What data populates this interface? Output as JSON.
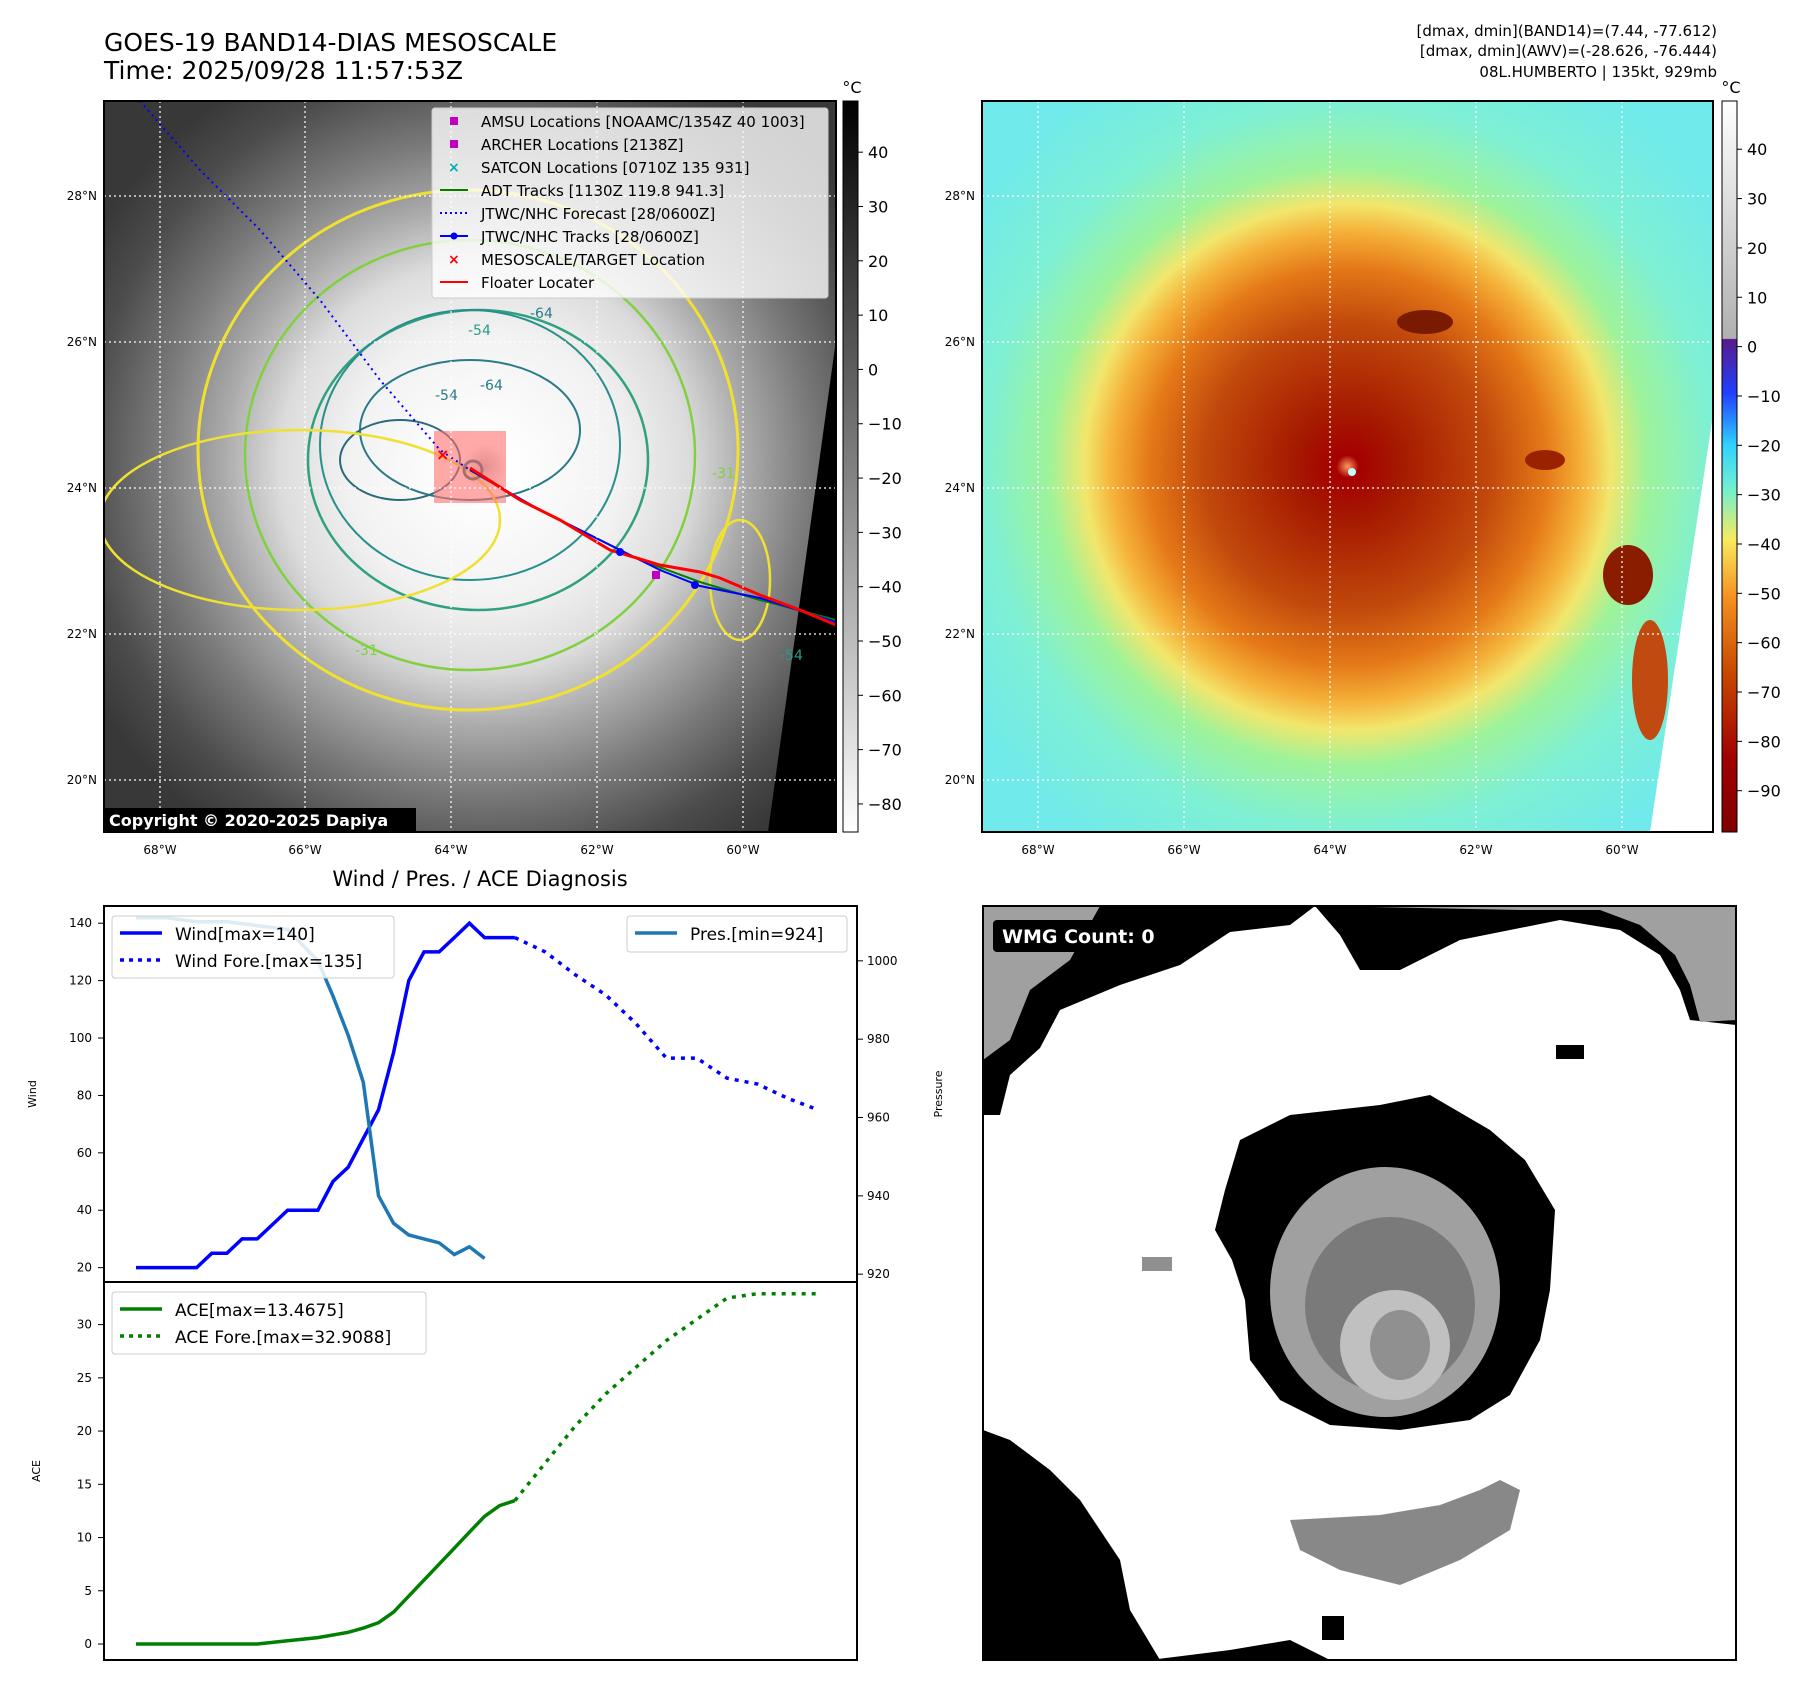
{
  "header": {
    "title_line1": "GOES-19 BAND14-DIAS MESOSCALE",
    "title_line2": "Time: 2025/09/28 11:57:53Z",
    "info_line1": "[dmax, dmin](BAND14)=(7.44, -77.612)",
    "info_line2": "[dmax, dmin](AWV)=(-28.626, -76.444)",
    "info_line3": "08L.HUMBERTO | 135kt, 929mb"
  },
  "map_panels": {
    "lat_labels": [
      "28°N",
      "26°N",
      "24°N",
      "22°N",
      "20°N"
    ],
    "lon_labels": [
      "68°W",
      "66°W",
      "64°W",
      "62°W",
      "60°W"
    ],
    "colorbar_unit": "°C",
    "gray_colorbar_ticks": [
      "40",
      "30",
      "20",
      "10",
      "0",
      "−10",
      "−20",
      "−30",
      "−40",
      "−50",
      "−60",
      "−70",
      "−80"
    ],
    "color_colorbar_ticks": [
      "40",
      "30",
      "20",
      "10",
      "0",
      "−10",
      "−20",
      "−30",
      "−40",
      "−50",
      "−60",
      "−70",
      "−80",
      "−90"
    ],
    "copyright": "Copyright © 2020-2025 Dapiya",
    "contour_labels": [
      "-64",
      "-54",
      "-64",
      "-54",
      "-31",
      "-31",
      "-54"
    ],
    "legend": [
      {
        "label": "AMSU Locations [NOAAMC/1354Z 40 1003]",
        "color": "#c000c0"
      },
      {
        "label": "ARCHER Locations [2138Z]",
        "color": "#c000c0"
      },
      {
        "label": "SATCON Locations [0710Z 135 931]",
        "color": "#00b0b0"
      },
      {
        "label": "ADT Tracks [1130Z 119.8 941.3]",
        "color": "#008000"
      },
      {
        "label": "JTWC/NHC Forecast [28/0600Z]",
        "color": "#0000ff"
      },
      {
        "label": "JTWC/NHC Tracks [28/0600Z]",
        "color": "#0000ff"
      },
      {
        "label": "MESOSCALE/TARGET Location",
        "color": "#ff0000"
      },
      {
        "label": "Floater Locater",
        "color": "#ff0000"
      }
    ]
  },
  "chart_data": [
    {
      "type": "line",
      "title": "Wind / Pres. / ACE Diagnosis",
      "ylabel": "Wind",
      "ylim": [
        15,
        146
      ],
      "yticks": [
        20,
        40,
        60,
        80,
        100,
        120,
        140
      ],
      "x_range": [
        0,
        45
      ],
      "series": [
        {
          "name": "Wind[max=140]",
          "style": "solid",
          "color": "#0000ff",
          "x": [
            0,
            1,
            2,
            3,
            4,
            5,
            6,
            7,
            8,
            9,
            10,
            11,
            12,
            13,
            14,
            15,
            16,
            17,
            18,
            19,
            20,
            21,
            22,
            23,
            24,
            25
          ],
          "values": [
            20,
            20,
            20,
            20,
            20,
            25,
            25,
            30,
            30,
            35,
            40,
            40,
            40,
            50,
            55,
            65,
            75,
            95,
            120,
            130,
            130,
            135,
            140,
            135,
            135,
            135
          ]
        },
        {
          "name": "Wind Fore.[max=135]",
          "style": "dotted",
          "color": "#0000ff",
          "x": [
            25,
            27,
            29,
            31,
            33,
            35,
            37,
            39,
            41,
            43,
            45
          ],
          "values": [
            135,
            130,
            122,
            115,
            105,
            93,
            93,
            86,
            84,
            79,
            75
          ]
        }
      ],
      "secondary": {
        "ylabel": "Pressure",
        "ylim": [
          918,
          1014
        ],
        "yticks": [
          920,
          940,
          960,
          980,
          1000
        ],
        "series": [
          {
            "name": "Pres.[min=924]",
            "color": "#1f77b4",
            "x": [
              0,
              2,
              4,
              6,
              8,
              10,
              12,
              13,
              14,
              15,
              16,
              17,
              18,
              19,
              20,
              21,
              22,
              23
            ],
            "values": [
              1011,
              1011,
              1010,
              1010,
              1009,
              1008,
              1000,
              991,
              981,
              969,
              940,
              933,
              930,
              929,
              928,
              925,
              927,
              924
            ]
          }
        ]
      }
    },
    {
      "type": "line",
      "ylabel": "ACE",
      "ylim": [
        -1.5,
        34
      ],
      "yticks": [
        0,
        5,
        10,
        15,
        20,
        25,
        30
      ],
      "x_range": [
        0,
        45
      ],
      "series": [
        {
          "name": "ACE[max=13.4675]",
          "style": "solid",
          "color": "#008000",
          "x": [
            0,
            4,
            8,
            10,
            12,
            14,
            15,
            16,
            17,
            18,
            19,
            20,
            21,
            22,
            23,
            24,
            25
          ],
          "values": [
            0,
            0,
            0,
            0.3,
            0.6,
            1.1,
            1.5,
            2.0,
            3.0,
            4.5,
            6.0,
            7.5,
            9.0,
            10.5,
            12.0,
            13.0,
            13.47
          ]
        },
        {
          "name": "ACE Fore.[max=32.9088]",
          "style": "dotted",
          "color": "#008000",
          "x": [
            25,
            27,
            29,
            31,
            33,
            35,
            37,
            39,
            41,
            43,
            45
          ],
          "values": [
            13.47,
            17.0,
            20.5,
            23.5,
            26.0,
            28.5,
            30.5,
            32.5,
            32.9,
            32.9,
            32.9
          ]
        }
      ]
    }
  ],
  "wmg": {
    "count_label": "WMG Count: 0"
  }
}
